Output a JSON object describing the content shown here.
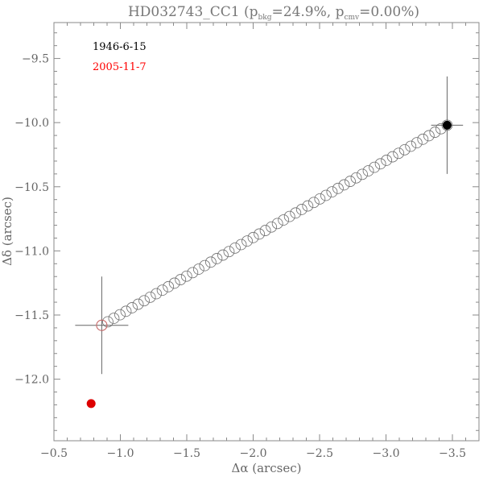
{
  "chart_data": {
    "type": "scatter",
    "title": {
      "prefix": "HD032743_CC1 (p",
      "sub1": "bkg",
      "mid": "=24.9%, p",
      "sub2": "cmv",
      "suffix": "=0.00%)"
    },
    "xlabel": "Δα (arcsec)",
    "ylabel": "Δδ (arcsec)",
    "xlim": [
      -0.5,
      -3.7
    ],
    "ylim": [
      -12.48,
      -9.22
    ],
    "x_ticks": [
      -0.5,
      -1.0,
      -1.5,
      -2.0,
      -2.5,
      -3.0,
      -3.5
    ],
    "x_tick_labels": [
      "−0.5",
      "−1.0",
      "−1.5",
      "−2.0",
      "−2.5",
      "−3.0",
      "−3.5"
    ],
    "y_ticks": [
      -9.5,
      -10.0,
      -10.5,
      -11.0,
      -11.5,
      -12.0
    ],
    "y_tick_labels": [
      "−9.5",
      "−10.0",
      "−10.5",
      "−11.0",
      "−11.5",
      "−12.0"
    ],
    "legend": [
      {
        "label": "1946-6-15",
        "color": "#000000"
      },
      {
        "label": "2005-11-7",
        "color": "#ff0000"
      }
    ],
    "background_track": {
      "start": {
        "x": -3.46,
        "y": -10.02
      },
      "end": {
        "x": -0.86,
        "y": -11.58
      },
      "count": 58,
      "color": "#6e6e6e"
    },
    "points": [
      {
        "name": "epoch-1946",
        "x": -3.46,
        "y": -10.02,
        "x_err": 0.12,
        "y_err": 0.38,
        "color": "#000000",
        "filled": true
      },
      {
        "name": "epoch-2005-observed",
        "x": -0.78,
        "y": -12.19,
        "color": "#dd0000",
        "filled": true
      },
      {
        "name": "epoch-2005-predicted",
        "x": -0.86,
        "y": -11.58,
        "x_err": 0.2,
        "y_err": 0.38,
        "color": "#cc6666",
        "filled": false
      }
    ]
  }
}
